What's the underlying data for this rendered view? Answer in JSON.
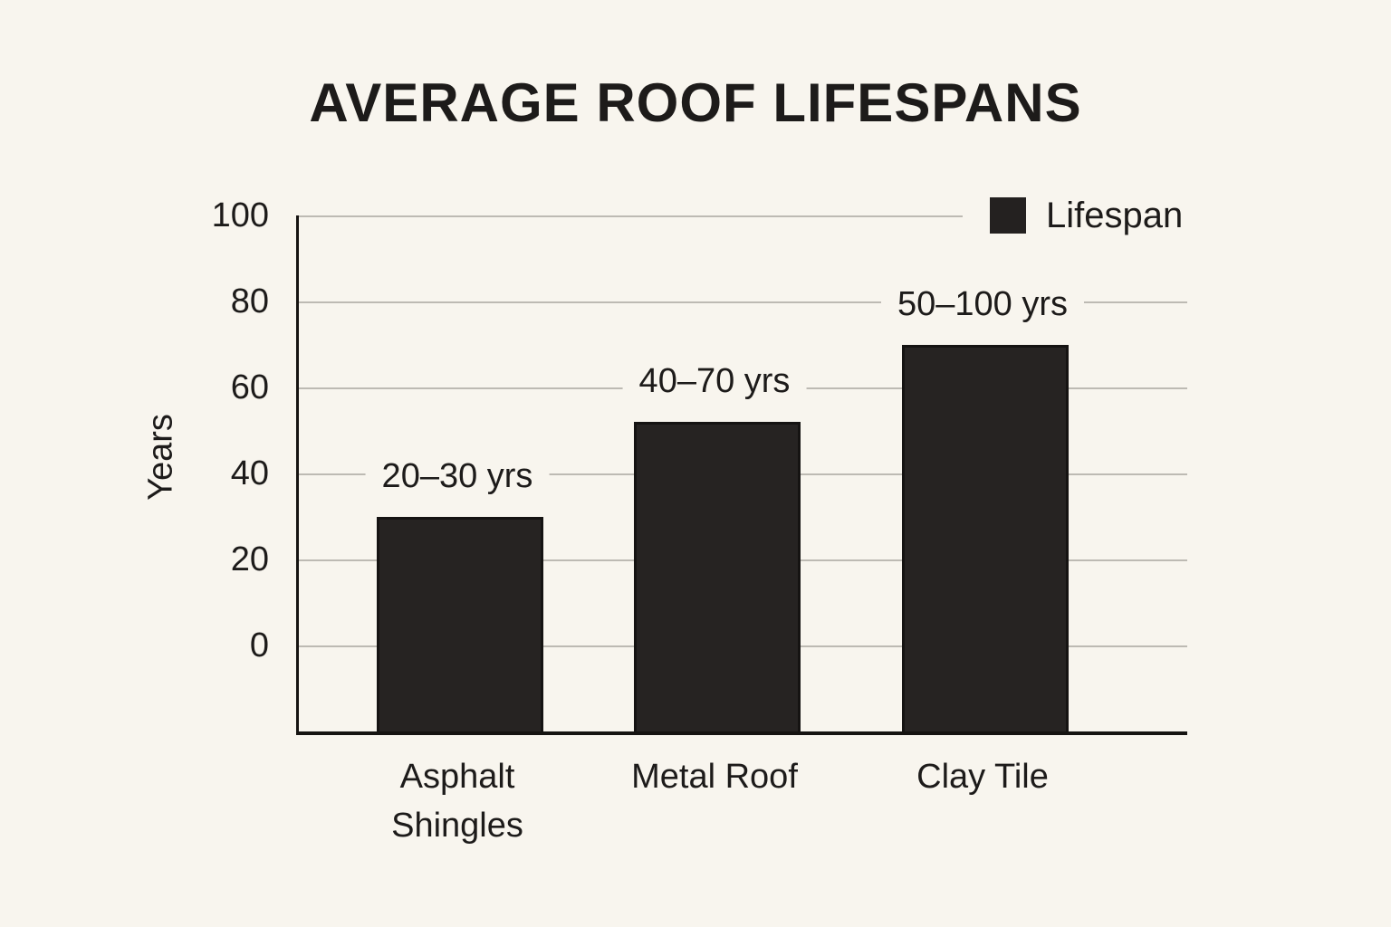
{
  "title": "AVERAGE ROOF LIFESPANS",
  "legend": {
    "label": "Lifespan",
    "swatch_color": "#242120"
  },
  "colors": {
    "background": "#f8f5ee",
    "bar": "#242120",
    "gridline": "#bdbab3",
    "axis": "#161412",
    "text": "#1d1b1a"
  },
  "chart_data": {
    "type": "bar",
    "title": "AVERAGE ROOF LIFESPANS",
    "xlabel": "",
    "ylabel": "Years",
    "categories": [
      "Asphalt Shingles",
      "Metal Roof",
      "Clay Tile"
    ],
    "series": [
      {
        "name": "Lifespan",
        "values": [
          30,
          52,
          70
        ]
      }
    ],
    "data_labels": [
      "20–30 yrs",
      "40–70 yrs",
      "50–100 yrs"
    ],
    "yticks": [
      0,
      20,
      40,
      60,
      80,
      100
    ],
    "ylim": [
      -20,
      100
    ],
    "grid": true,
    "legend_position": "top-right"
  }
}
